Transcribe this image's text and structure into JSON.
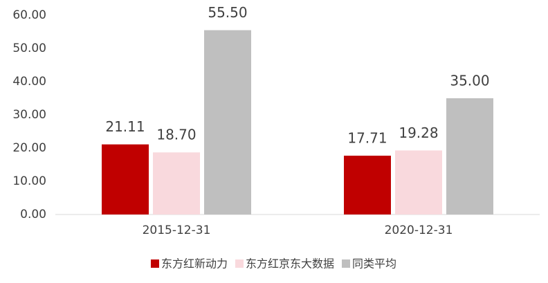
{
  "chart_data": {
    "type": "bar",
    "categories": [
      "2015-12-31",
      "2020-12-31"
    ],
    "series": [
      {
        "name": "东方红新动力",
        "color": "#c00000",
        "values": [
          21.11,
          17.71
        ],
        "value_labels": [
          "21.11",
          "17.71"
        ]
      },
      {
        "name": "东方红京东大数据",
        "color": "#f9d9dd",
        "values": [
          18.7,
          19.28
        ],
        "value_labels": [
          "18.70",
          "19.28"
        ]
      },
      {
        "name": "同类平均",
        "color": "#bfbfbf",
        "values": [
          55.5,
          35
        ],
        "value_labels": [
          "55.50",
          "35.00"
        ]
      }
    ],
    "ylim": [
      0,
      60
    ],
    "yticks": [
      {
        "value": 0,
        "label": "0.00"
      },
      {
        "value": 10,
        "label": "10.00"
      },
      {
        "value": 20,
        "label": "20.00"
      },
      {
        "value": 30,
        "label": "30.00"
      },
      {
        "value": 40,
        "label": "40.00"
      },
      {
        "value": 50,
        "label": "50.00"
      },
      {
        "value": 60,
        "label": "60.00"
      }
    ],
    "grid": false,
    "legend": "bottom"
  }
}
